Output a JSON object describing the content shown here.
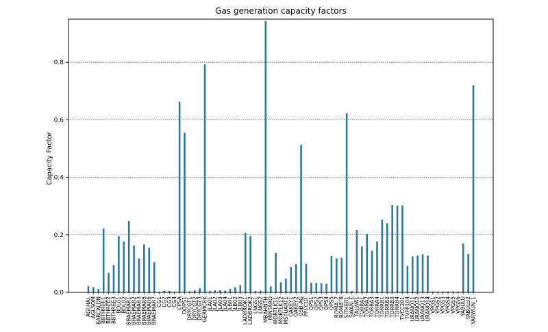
{
  "chart_data": {
    "type": "bar",
    "title": "Gas generation capacity factors",
    "xlabel": "",
    "ylabel": "Capacity Factor",
    "ylim": [
      0,
      0.95
    ],
    "yticks": [
      0.0,
      0.2,
      0.4,
      0.6,
      0.8
    ],
    "ytick_labels": [
      "0.0",
      "0.2",
      "0.4",
      "0.6",
      "0.8"
    ],
    "grid": "horizontal-dotted",
    "bar_color": "#2878a0",
    "categories": [
      "AGLHAL",
      "AGLSOM",
      "BARCALDN",
      "BBTHREE1",
      "BBTHREE2",
      "BBTHREE3",
      "BDL01",
      "BDL02",
      "BRAEMAR1",
      "BRAEMAR2",
      "BRAEMAR3",
      "BRAEMAR5",
      "BRAEMAR6",
      "BRAEMAR7",
      "CG1",
      "CG2",
      "CG3",
      "CG4",
      "CPSA",
      "DDPS1",
      "DRYCGT1",
      "DRYCGT2",
      "DRYCGT3",
      "GERMCRK",
      "JLA01",
      "JLA02",
      "JLA03",
      "JLA04",
      "JLB01",
      "JLB02",
      "JLB03",
      "LADBROK1",
      "LADBROK2",
      "LNGS1",
      "LNGS2",
      "MBAHNTH",
      "MINTARO",
      "MORTLK11",
      "MORTLK12",
      "MSTUART1",
      "OAKEY1",
      "OAKEY2",
      "OSB-AG",
      "PPCCGT",
      "QPS1",
      "QPS2",
      "QPS3",
      "QPS4",
      "QPS5",
      "ROMA_7",
      "ROMA_8",
      "SITHE01",
      "SWAN_E",
      "TALWA1",
      "TORRA1",
      "TORRA2",
      "TORRA3",
      "TORRA4",
      "TORRB1",
      "TORRB2",
      "TORRB3",
      "TORRB4",
      "TVCC201",
      "TVPP104",
      "URANQ11",
      "URANQ12",
      "URANQ13",
      "URANQ14",
      "VPGS1",
      "VPGS2",
      "VPGS3",
      "VPGS4",
      "VPGS5",
      "VPGS6",
      "YABULU",
      "YABULU2",
      "YARWUN_1"
    ],
    "values": [
      0.022,
      0.018,
      0.012,
      0.222,
      0.068,
      0.095,
      0.195,
      0.177,
      0.248,
      0.163,
      0.118,
      0.167,
      0.155,
      0.105,
      0.003,
      0.006,
      0.005,
      0.003,
      0.663,
      0.555,
      0.004,
      0.008,
      0.014,
      0.793,
      0.005,
      0.007,
      0.008,
      0.006,
      0.012,
      0.018,
      0.025,
      0.207,
      0.196,
      0.005,
      0.006,
      0.943,
      0.021,
      0.138,
      0.035,
      0.048,
      0.088,
      0.098,
      0.513,
      0.1,
      0.033,
      0.033,
      0.032,
      0.03,
      0.126,
      0.118,
      0.12,
      0.623,
      0.005,
      0.216,
      0.16,
      0.203,
      0.145,
      0.177,
      0.253,
      0.24,
      0.304,
      0.302,
      0.302,
      0.092,
      0.125,
      0.128,
      0.132,
      0.128,
      0.003,
      0.003,
      0.003,
      0.003,
      0.003,
      0.003,
      0.17,
      0.133,
      0.72
    ]
  }
}
